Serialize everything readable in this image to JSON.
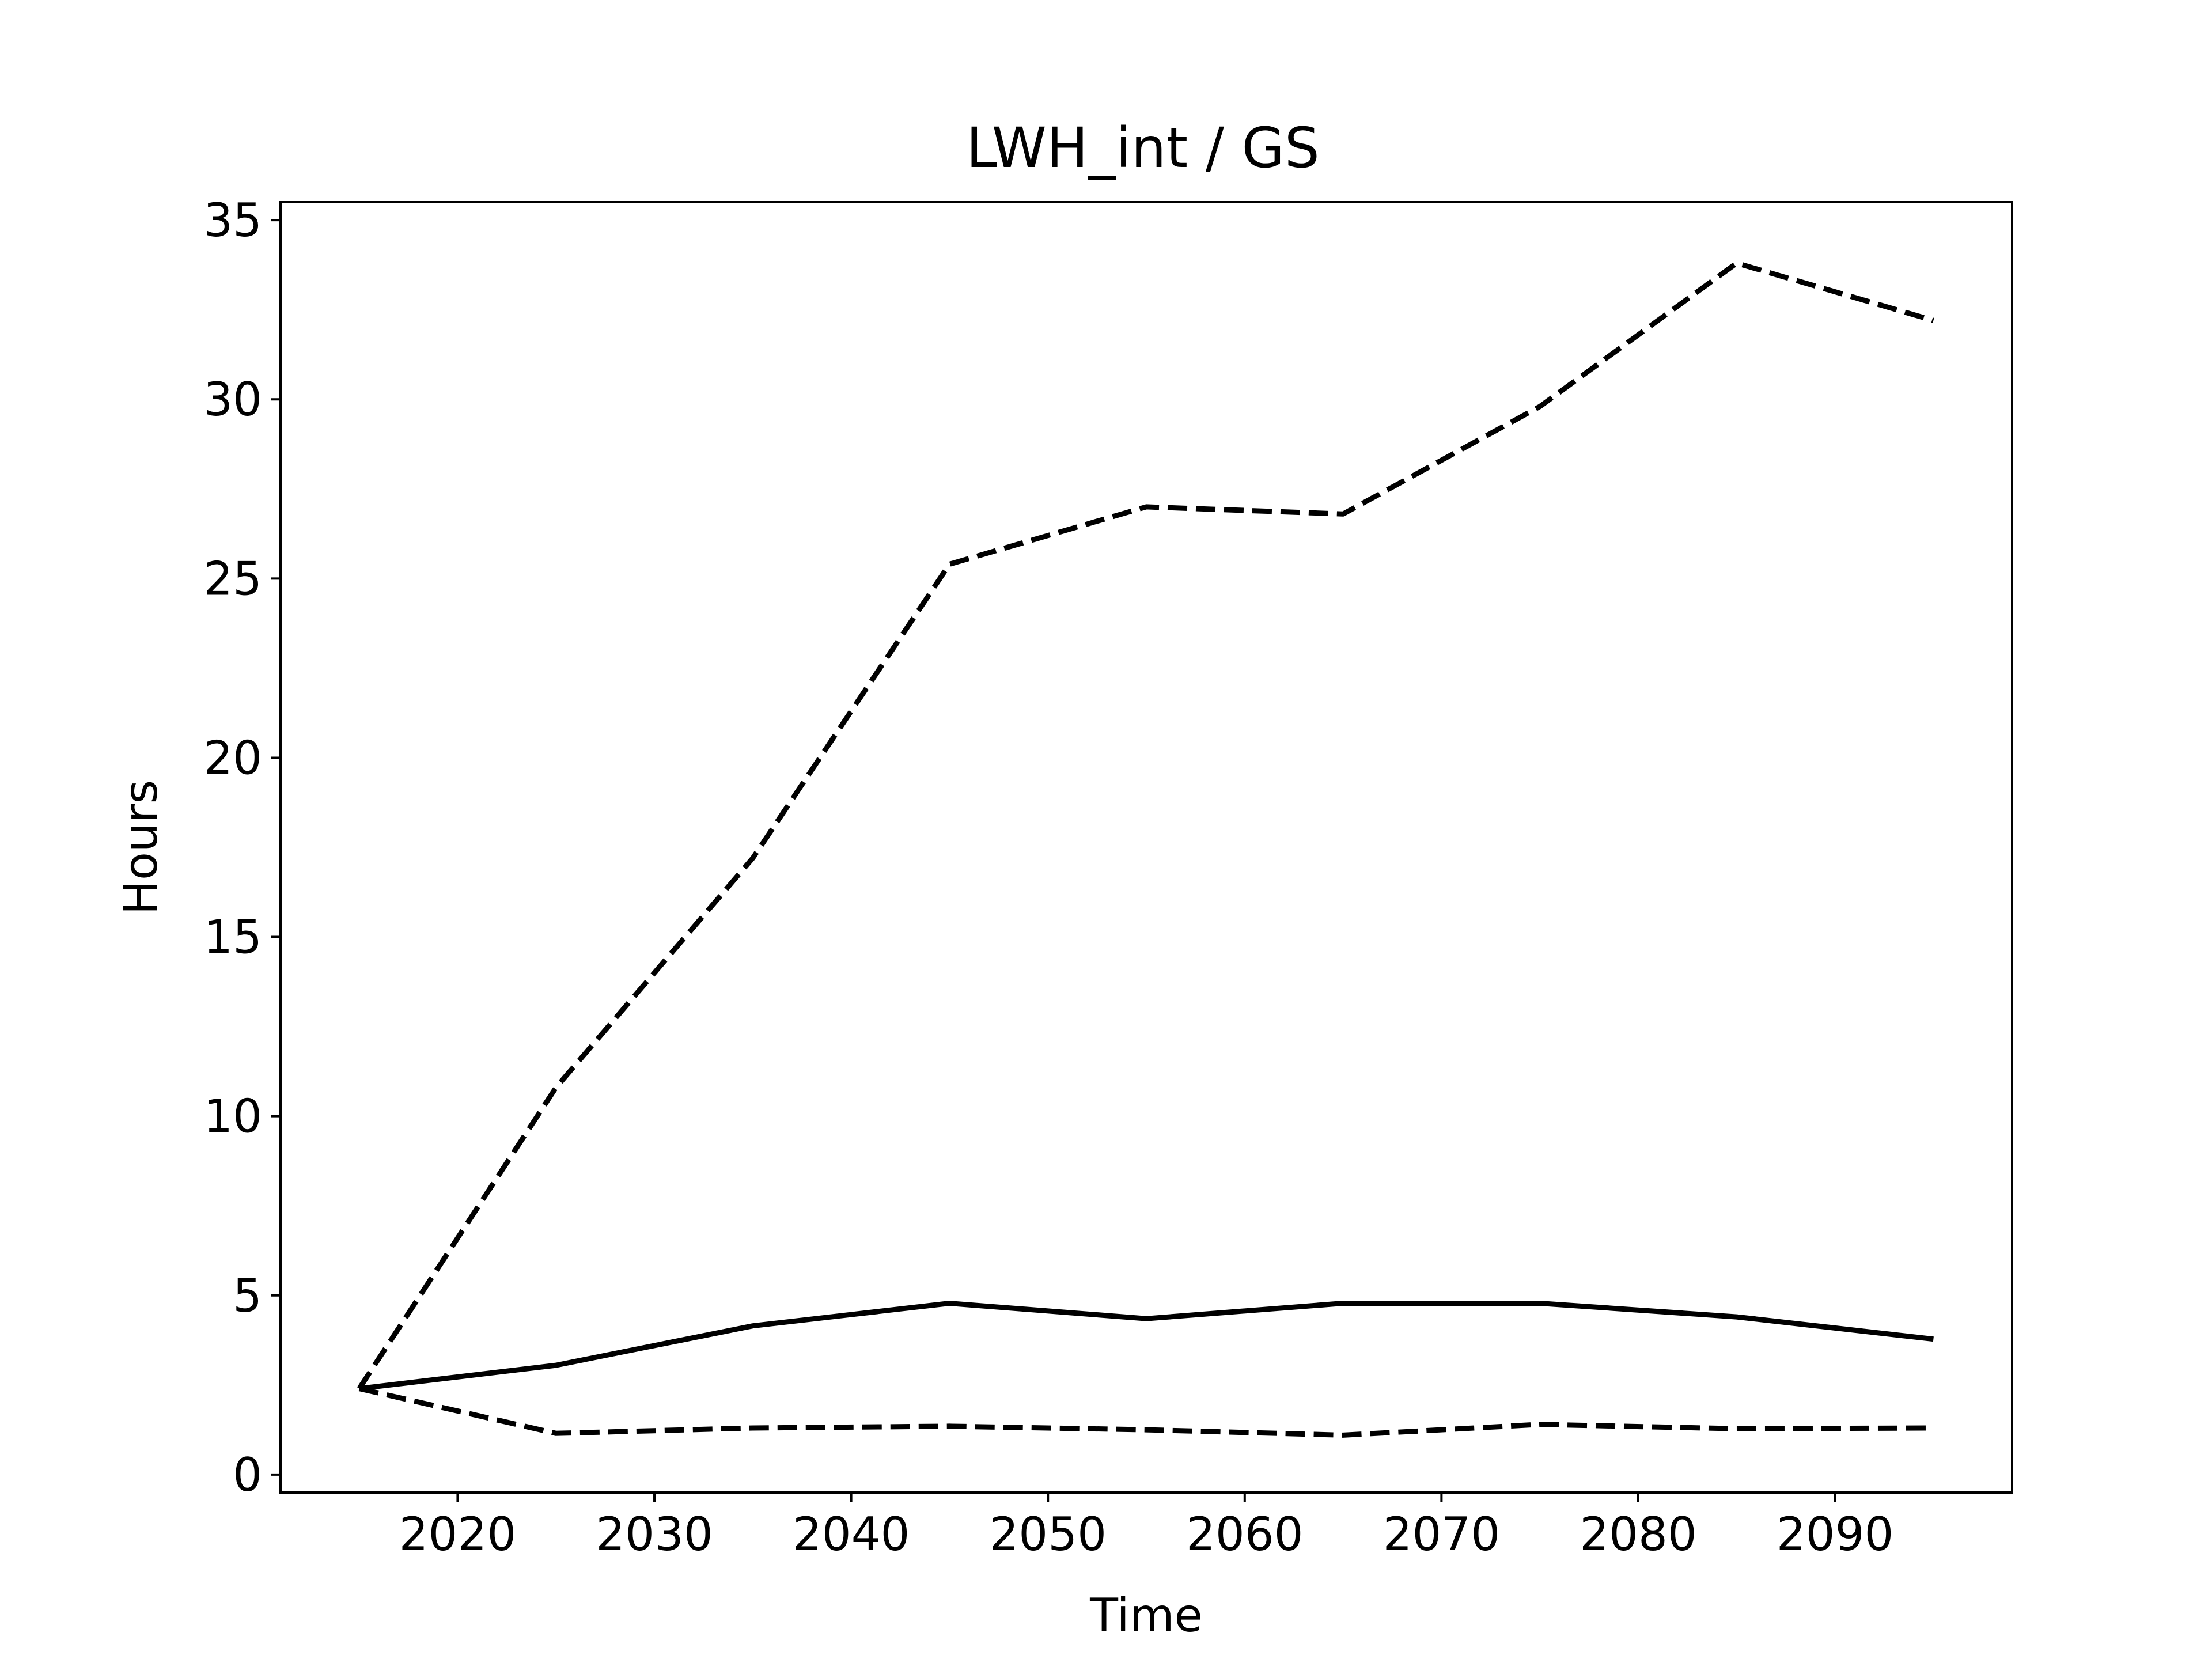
{
  "chart_data": {
    "type": "line",
    "title": "LWH_int / GS",
    "xlabel": "Time",
    "ylabel": "Hours",
    "xlim": [
      2011,
      2099
    ],
    "ylim": [
      -0.5,
      35.5
    ],
    "x_ticks": [
      2020,
      2030,
      2040,
      2050,
      2060,
      2070,
      2080,
      2090
    ],
    "y_ticks": [
      0,
      5,
      10,
      15,
      20,
      25,
      30,
      35
    ],
    "grid": false,
    "legend": null,
    "x": [
      2015,
      2025,
      2035,
      2045,
      2055,
      2065,
      2075,
      2085,
      2095
    ],
    "series": [
      {
        "style": "solid",
        "color": "#000000",
        "values": [
          2.4,
          3.05,
          4.15,
          4.78,
          4.35,
          4.78,
          4.78,
          4.4,
          3.78
        ]
      },
      {
        "style": "dashed",
        "color": "#000000",
        "values": [
          2.4,
          10.8,
          17.2,
          25.4,
          27.0,
          26.8,
          29.8,
          33.8,
          32.2
        ]
      },
      {
        "style": "dashed",
        "color": "#000000",
        "values": [
          2.4,
          1.15,
          1.3,
          1.35,
          1.25,
          1.1,
          1.4,
          1.28,
          1.3
        ]
      }
    ]
  }
}
